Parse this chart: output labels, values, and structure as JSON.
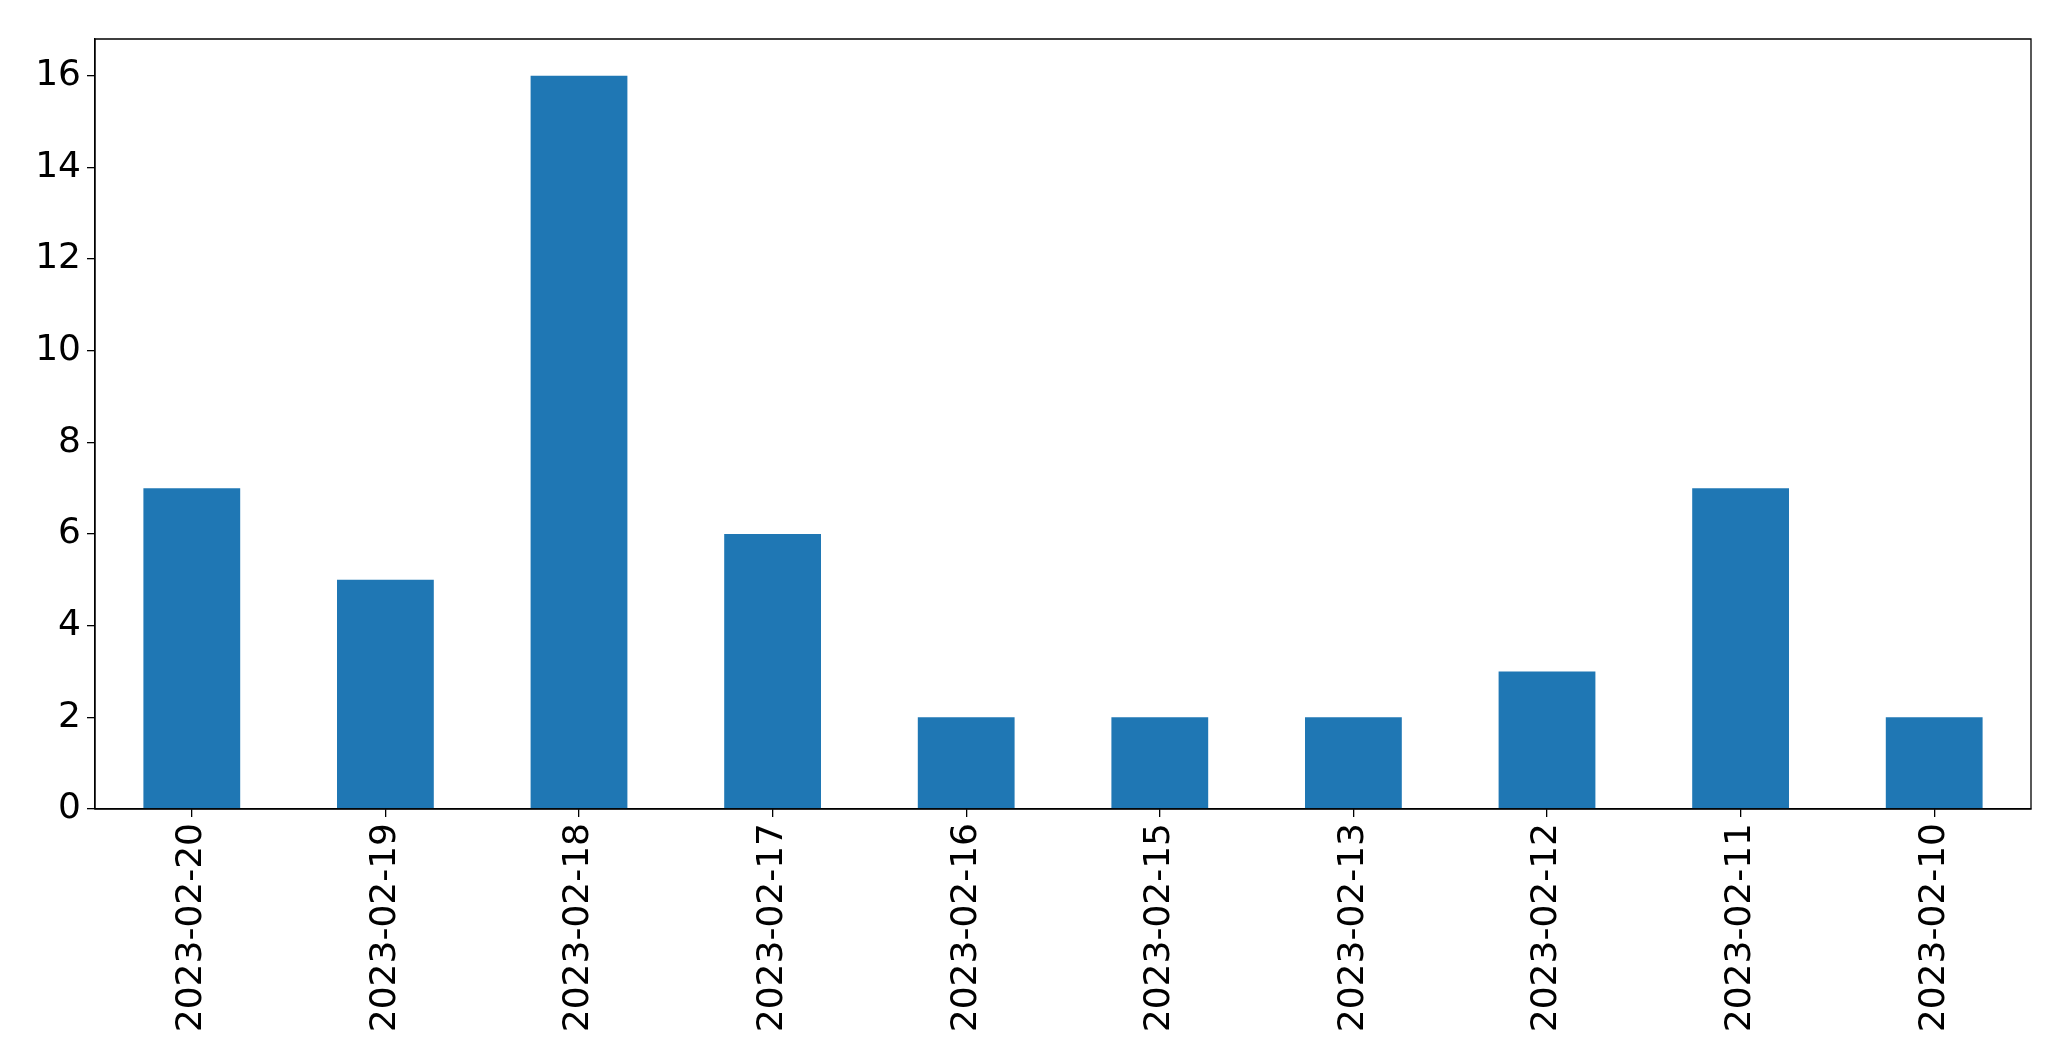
{
  "chart_data": {
    "type": "bar",
    "categories": [
      "2023-02-20",
      "2023-02-19",
      "2023-02-18",
      "2023-02-17",
      "2023-02-16",
      "2023-02-15",
      "2023-02-13",
      "2023-02-12",
      "2023-02-11",
      "2023-02-10"
    ],
    "values": [
      7,
      5,
      16,
      6,
      2,
      2,
      2,
      3,
      7,
      2
    ],
    "color": "#1f77b4",
    "ylim": [
      0,
      16.8
    ],
    "yticks": [
      0,
      2,
      4,
      6,
      8,
      10,
      12,
      14,
      16
    ],
    "grid": false,
    "legend": false
  }
}
